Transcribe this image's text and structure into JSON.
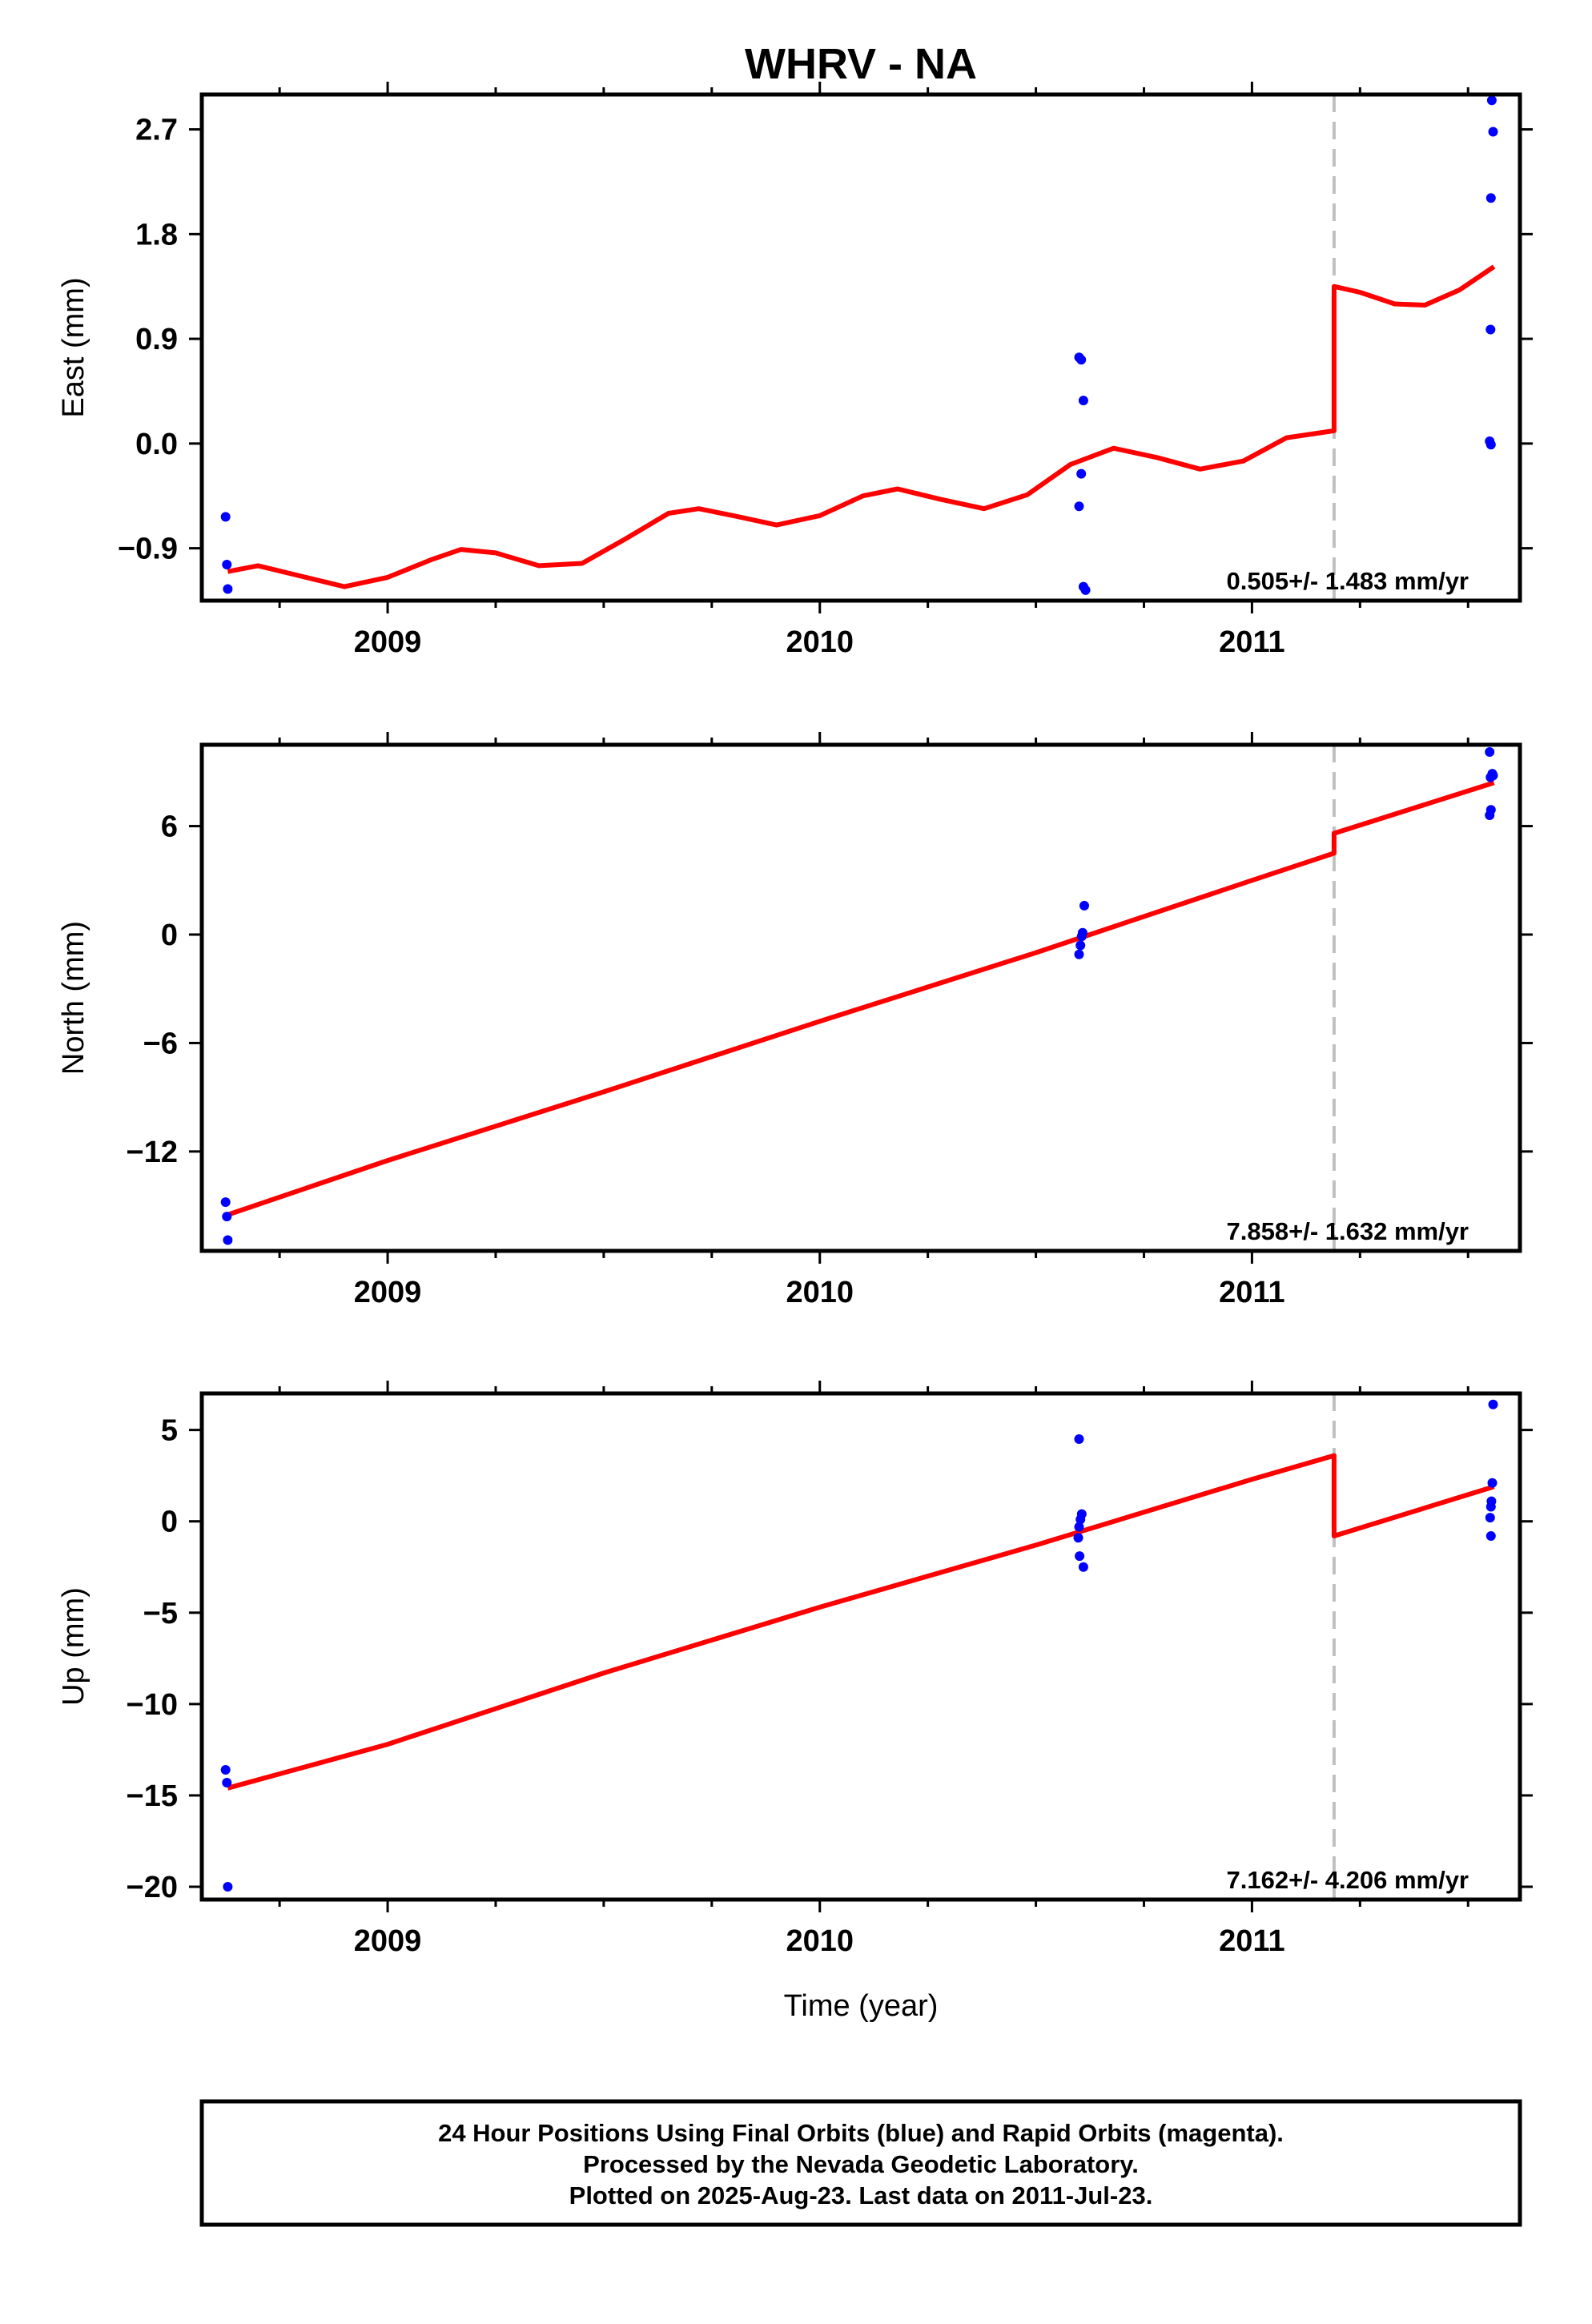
{
  "title": "WHRV - NA",
  "colors": {
    "data_points": "#0000ff",
    "model_line": "#ff0000",
    "break_line": "#c0c0c0"
  },
  "x_axis_label": "Time (year)",
  "chart_data": [
    {
      "type": "scatter",
      "ylabel": "East (mm)",
      "xlim": [
        2008.57,
        2011.62
      ],
      "ylim": [
        -1.35,
        3.0
      ],
      "yticks": [
        -0.9,
        0.0,
        0.9,
        1.8,
        2.7
      ],
      "ytick_labels": [
        "−0.9",
        "0.0",
        "0.9",
        "1.8",
        "2.7"
      ],
      "xticks": [
        2009,
        2010,
        2011
      ],
      "xtick_labels": [
        "2009",
        "2010",
        "2011"
      ],
      "rate": "0.505+/- 1.483 mm/yr",
      "break_x": 2011.19,
      "points": [
        {
          "x": 2008.625,
          "y": -0.63
        },
        {
          "x": 2008.628,
          "y": -1.04
        },
        {
          "x": 2008.63,
          "y": -1.25
        },
        {
          "x": 2010.6,
          "y": 0.74
        },
        {
          "x": 2010.605,
          "y": 0.72
        },
        {
          "x": 2010.61,
          "y": 0.37
        },
        {
          "x": 2010.605,
          "y": -0.26
        },
        {
          "x": 2010.6,
          "y": -0.54
        },
        {
          "x": 2010.61,
          "y": -1.23
        },
        {
          "x": 2010.615,
          "y": -1.26
        },
        {
          "x": 2011.555,
          "y": 2.95
        },
        {
          "x": 2011.558,
          "y": 2.68
        },
        {
          "x": 2011.553,
          "y": 2.11
        },
        {
          "x": 2011.552,
          "y": 0.98
        },
        {
          "x": 2011.55,
          "y": 0.02
        },
        {
          "x": 2011.553,
          "y": -0.01
        }
      ],
      "model": [
        {
          "x": 2008.63,
          "y": -1.1
        },
        {
          "x": 2008.7,
          "y": -1.05
        },
        {
          "x": 2008.8,
          "y": -1.14
        },
        {
          "x": 2008.9,
          "y": -1.23
        },
        {
          "x": 2009.0,
          "y": -1.15
        },
        {
          "x": 2009.1,
          "y": -1.0
        },
        {
          "x": 2009.17,
          "y": -0.91
        },
        {
          "x": 2009.25,
          "y": -0.94
        },
        {
          "x": 2009.35,
          "y": -1.05
        },
        {
          "x": 2009.45,
          "y": -1.03
        },
        {
          "x": 2009.55,
          "y": -0.82
        },
        {
          "x": 2009.65,
          "y": -0.6
        },
        {
          "x": 2009.72,
          "y": -0.56
        },
        {
          "x": 2009.8,
          "y": -0.62
        },
        {
          "x": 2009.9,
          "y": -0.7
        },
        {
          "x": 2010.0,
          "y": -0.62
        },
        {
          "x": 2010.1,
          "y": -0.45
        },
        {
          "x": 2010.18,
          "y": -0.39
        },
        {
          "x": 2010.28,
          "y": -0.48
        },
        {
          "x": 2010.38,
          "y": -0.56
        },
        {
          "x": 2010.48,
          "y": -0.44
        },
        {
          "x": 2010.58,
          "y": -0.18
        },
        {
          "x": 2010.68,
          "y": -0.04
        },
        {
          "x": 2010.78,
          "y": -0.12
        },
        {
          "x": 2010.88,
          "y": -0.22
        },
        {
          "x": 2010.98,
          "y": -0.15
        },
        {
          "x": 2011.08,
          "y": 0.05
        },
        {
          "x": 2011.19,
          "y": 0.11
        },
        {
          "x": 2011.19,
          "y": 1.35
        },
        {
          "x": 2011.25,
          "y": 1.3
        },
        {
          "x": 2011.33,
          "y": 1.2
        },
        {
          "x": 2011.4,
          "y": 1.19
        },
        {
          "x": 2011.48,
          "y": 1.32
        },
        {
          "x": 2011.56,
          "y": 1.52
        }
      ]
    },
    {
      "type": "scatter",
      "ylabel": "North (mm)",
      "xlim": [
        2008.57,
        2011.62
      ],
      "ylim": [
        -17.5,
        10.5
      ],
      "yticks": [
        -12,
        -6,
        0,
        6
      ],
      "ytick_labels": [
        "−12",
        "−6",
        "0",
        "6"
      ],
      "xticks": [
        2009,
        2010,
        2011
      ],
      "xtick_labels": [
        "2009",
        "2010",
        "2011"
      ],
      "rate": "7.858+/- 1.632 mm/yr",
      "break_x": 2011.19,
      "points": [
        {
          "x": 2008.625,
          "y": -14.8
        },
        {
          "x": 2008.628,
          "y": -15.6
        },
        {
          "x": 2008.63,
          "y": -16.9
        },
        {
          "x": 2010.6,
          "y": -1.1
        },
        {
          "x": 2010.603,
          "y": -0.6
        },
        {
          "x": 2010.606,
          "y": -0.1
        },
        {
          "x": 2010.608,
          "y": 0.1
        },
        {
          "x": 2010.612,
          "y": 1.6
        },
        {
          "x": 2011.55,
          "y": 10.1
        },
        {
          "x": 2011.552,
          "y": 8.7
        },
        {
          "x": 2011.556,
          "y": 8.9
        },
        {
          "x": 2011.558,
          "y": 8.8
        },
        {
          "x": 2011.553,
          "y": 6.9
        },
        {
          "x": 2011.55,
          "y": 6.6
        }
      ],
      "model": [
        {
          "x": 2008.63,
          "y": -15.5
        },
        {
          "x": 2009.0,
          "y": -12.5
        },
        {
          "x": 2009.5,
          "y": -8.7
        },
        {
          "x": 2010.0,
          "y": -4.8
        },
        {
          "x": 2010.5,
          "y": -1.0
        },
        {
          "x": 2011.0,
          "y": 3.0
        },
        {
          "x": 2011.19,
          "y": 4.5
        },
        {
          "x": 2011.19,
          "y": 5.6
        },
        {
          "x": 2011.56,
          "y": 8.4
        }
      ]
    },
    {
      "type": "scatter",
      "ylabel": "Up (mm)",
      "xlim": [
        2008.57,
        2011.62
      ],
      "ylim": [
        -20.7,
        7.0
      ],
      "yticks": [
        -20,
        -15,
        -10,
        -5,
        0,
        5
      ],
      "ytick_labels": [
        "−20",
        "−15",
        "−10",
        "−5",
        "0",
        "5"
      ],
      "xticks": [
        2009,
        2010,
        2011
      ],
      "xtick_labels": [
        "2009",
        "2010",
        "2011"
      ],
      "rate": "7.162+/- 4.206 mm/yr",
      "break_x": 2011.19,
      "points": [
        {
          "x": 2008.625,
          "y": -13.6
        },
        {
          "x": 2008.628,
          "y": -14.3
        },
        {
          "x": 2008.63,
          "y": -20.0
        },
        {
          "x": 2010.6,
          "y": 4.5
        },
        {
          "x": 2010.606,
          "y": 0.4
        },
        {
          "x": 2010.603,
          "y": 0.1
        },
        {
          "x": 2010.6,
          "y": -0.3
        },
        {
          "x": 2010.598,
          "y": -0.9
        },
        {
          "x": 2010.601,
          "y": -1.9
        },
        {
          "x": 2010.61,
          "y": -2.5
        },
        {
          "x": 2011.558,
          "y": 6.4
        },
        {
          "x": 2011.556,
          "y": 2.1
        },
        {
          "x": 2011.554,
          "y": 1.1
        },
        {
          "x": 2011.553,
          "y": 0.8
        },
        {
          "x": 2011.551,
          "y": 0.2
        },
        {
          "x": 2011.553,
          "y": -0.8
        }
      ],
      "model": [
        {
          "x": 2008.63,
          "y": -14.6
        },
        {
          "x": 2009.0,
          "y": -12.2
        },
        {
          "x": 2009.5,
          "y": -8.3
        },
        {
          "x": 2010.0,
          "y": -4.7
        },
        {
          "x": 2010.5,
          "y": -1.3
        },
        {
          "x": 2011.0,
          "y": 2.3
        },
        {
          "x": 2011.19,
          "y": 3.6
        },
        {
          "x": 2011.19,
          "y": -0.8
        },
        {
          "x": 2011.56,
          "y": 1.9
        }
      ]
    }
  ],
  "footer": {
    "line1": "24 Hour Positions Using Final Orbits (blue) and Rapid Orbits (magenta).",
    "line2": "Processed by the Nevada Geodetic Laboratory.",
    "line3": "Plotted on 2025-Aug-23. Last data on 2011-Jul-23."
  }
}
